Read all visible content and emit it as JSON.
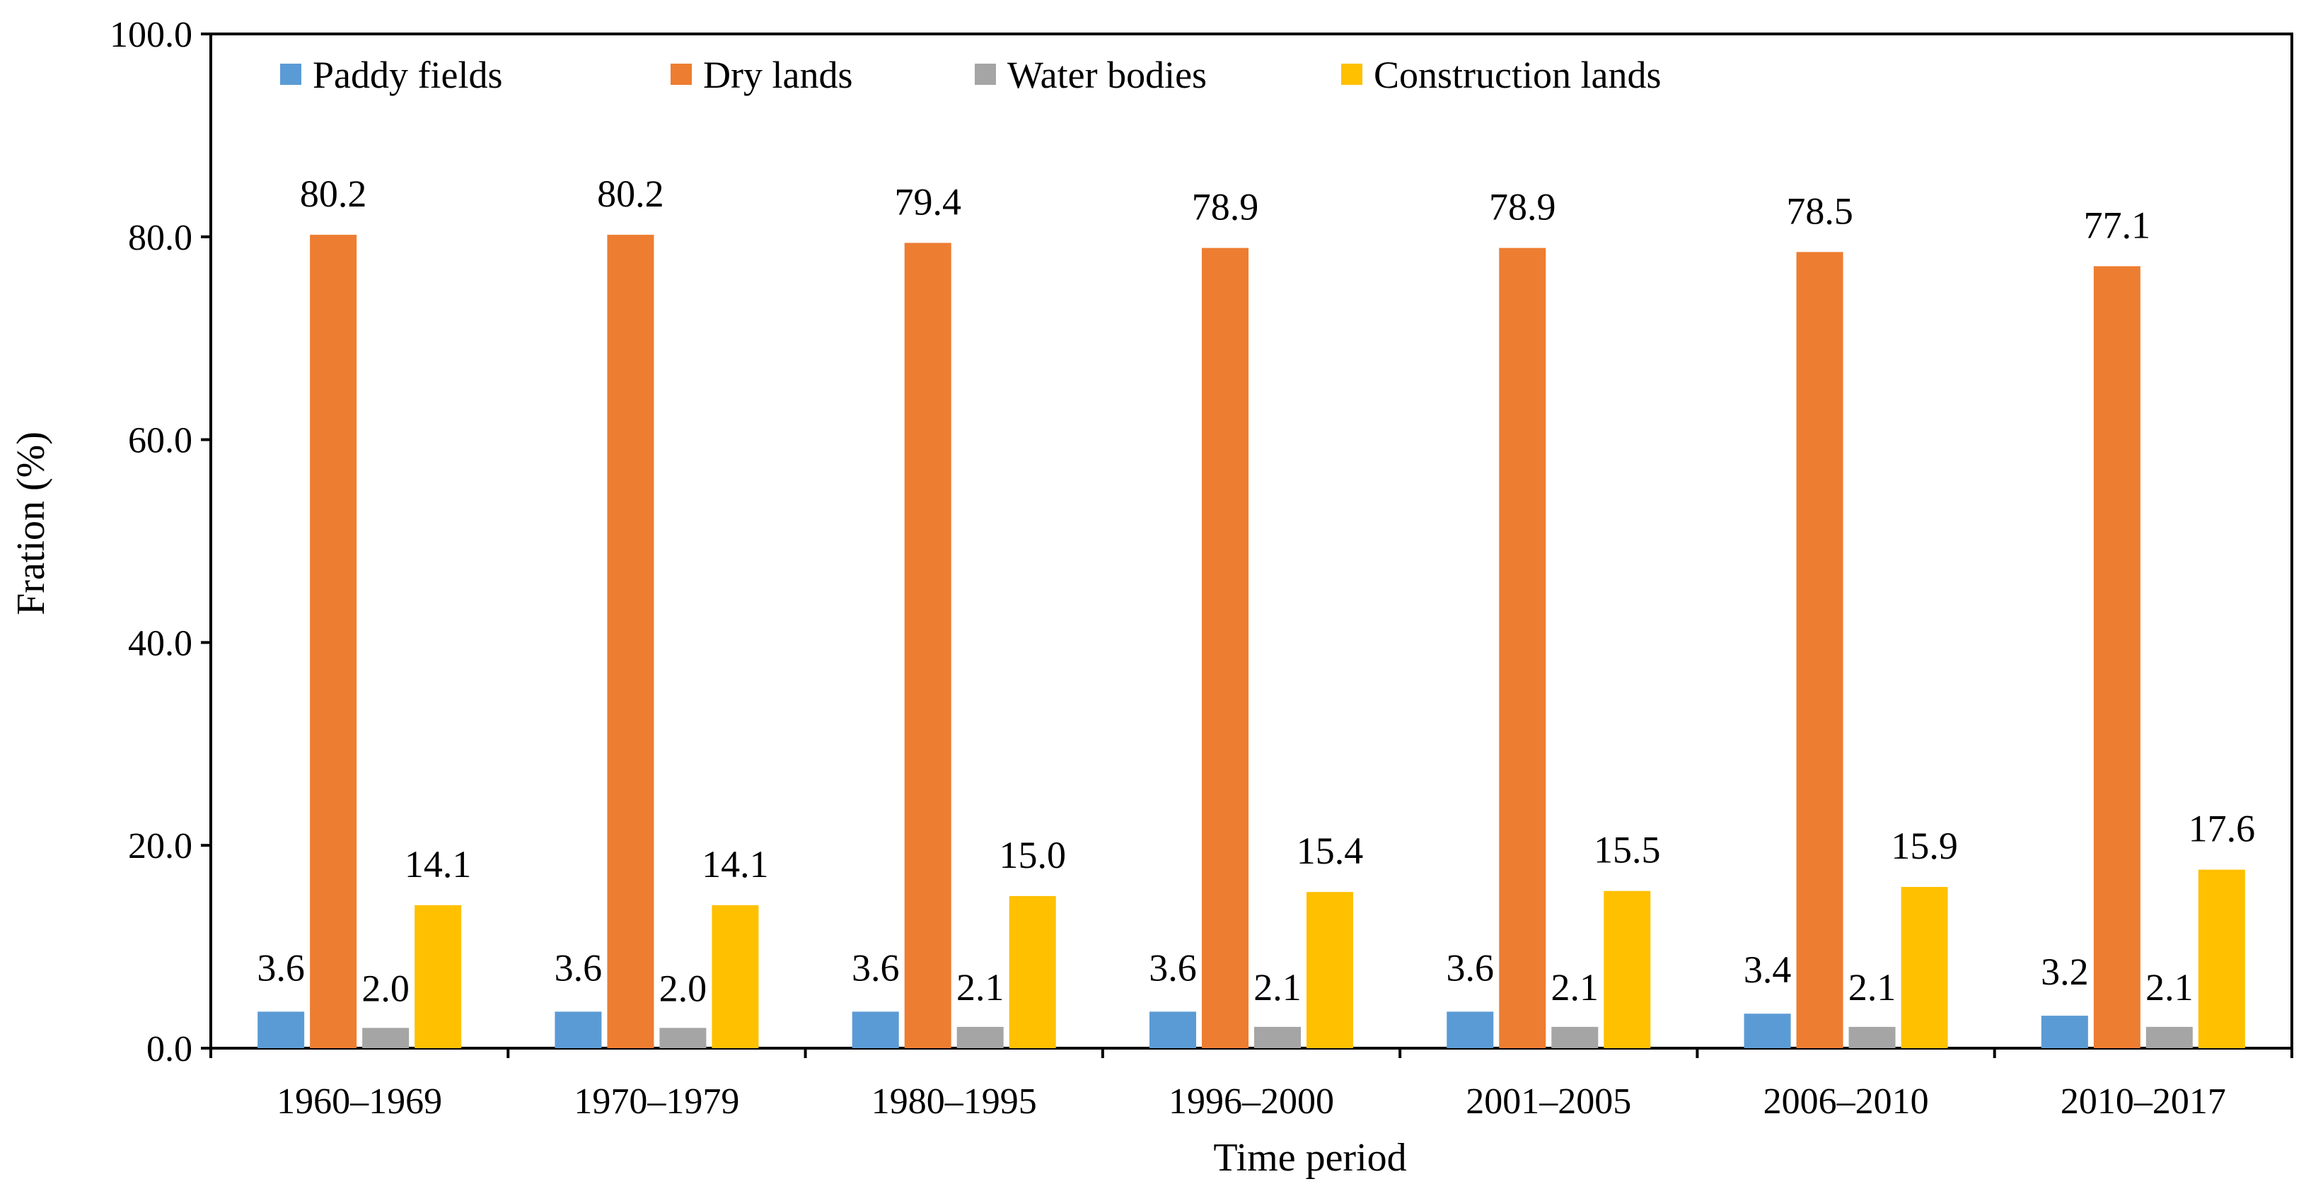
{
  "chart_data": {
    "type": "bar",
    "title": "",
    "xlabel": "Time period",
    "ylabel": "Fration (%)",
    "ylim": [
      0,
      100
    ],
    "yticks": [
      "0.0",
      "20.0",
      "40.0",
      "60.0",
      "80.0",
      "100.0"
    ],
    "legend_position": "top-left",
    "categories": [
      "1960–1969",
      "1970–1979",
      "1980–1995",
      "1996–2000",
      "2001–2005",
      "2006–2010",
      "2010–2017"
    ],
    "series": [
      {
        "name": "Paddy fields",
        "color": "#5b9bd5",
        "values": [
          3.6,
          3.6,
          3.6,
          3.6,
          3.6,
          3.4,
          3.2
        ],
        "labels": [
          "3.6",
          "3.6",
          "3.6",
          "3.6",
          "3.6",
          "3.4",
          "3.2"
        ]
      },
      {
        "name": "Dry lands",
        "color": "#ed7d31",
        "values": [
          80.2,
          80.2,
          79.4,
          78.9,
          78.9,
          78.5,
          77.1
        ],
        "labels": [
          "80.2",
          "80.2",
          "79.4",
          "78.9",
          "78.9",
          "78.5",
          "77.1"
        ]
      },
      {
        "name": "Water bodies",
        "color": "#a5a5a5",
        "values": [
          2.0,
          2.0,
          2.1,
          2.1,
          2.1,
          2.1,
          2.1
        ],
        "labels": [
          "2.0",
          "2.0",
          "2.1",
          "2.1",
          "2.1",
          "2.1",
          "2.1"
        ]
      },
      {
        "name": "Construction lands",
        "color": "#ffc000",
        "values": [
          14.1,
          14.1,
          15.0,
          15.4,
          15.5,
          15.9,
          17.6
        ],
        "labels": [
          "14.1",
          "14.1",
          "15.0",
          "15.4",
          "15.5",
          "15.9",
          "17.6"
        ]
      }
    ]
  }
}
